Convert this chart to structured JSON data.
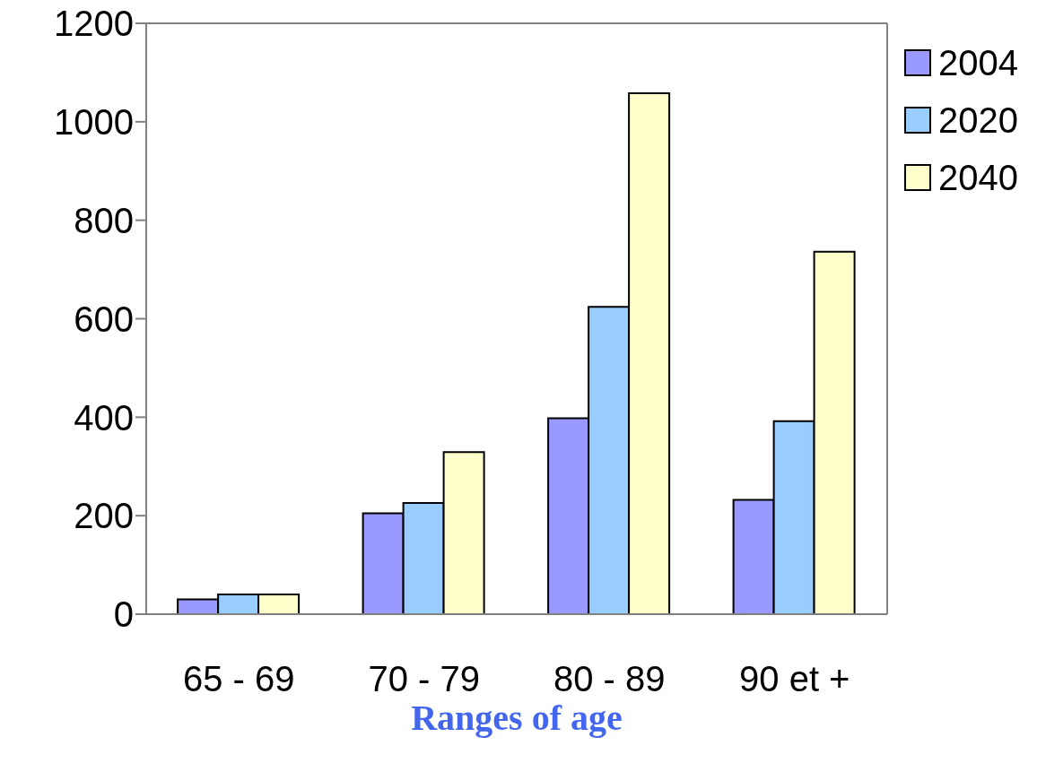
{
  "chart_data": {
    "type": "bar",
    "xlabel": "Ranges of age",
    "categories": [
      "65 - 69",
      "70 - 79",
      "80 - 89",
      "90 et +"
    ],
    "series": [
      {
        "name": "2004",
        "color": "#9999ff",
        "values": [
          30,
          205,
          398,
          232
        ]
      },
      {
        "name": "2020",
        "color": "#99ccff",
        "values": [
          40,
          226,
          624,
          392
        ]
      },
      {
        "name": "2040",
        "color": "#ffffcc",
        "values": [
          40,
          329,
          1058,
          736
        ]
      }
    ],
    "ylim": [
      0,
      1200
    ],
    "yticks": [
      0,
      200,
      400,
      600,
      800,
      1000,
      1200
    ],
    "legend": "right"
  }
}
